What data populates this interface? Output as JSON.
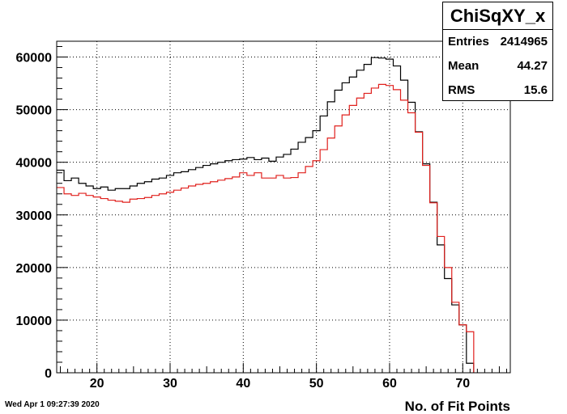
{
  "chart_data": {
    "type": "step",
    "title": "ChiSqXY_x",
    "xlabel": "No. of Fit Points",
    "ylabel": "",
    "xlim": [
      14.5,
      76.5
    ],
    "ylim": [
      0,
      63000
    ],
    "grid": true,
    "xticks": [
      20,
      30,
      40,
      50,
      60,
      70
    ],
    "yticks": [
      0,
      10000,
      20000,
      30000,
      40000,
      50000,
      60000
    ],
    "xtick_labels": [
      "20",
      "30",
      "40",
      "50",
      "60",
      "70"
    ],
    "ytick_labels": [
      "0",
      "10000",
      "20000",
      "30000",
      "40000",
      "50000",
      "60000"
    ],
    "bin_edges_start": 14.5,
    "bin_width": 1,
    "series": [
      {
        "color": "#000000",
        "values": [
          38500,
          36500,
          37000,
          36000,
          35500,
          35000,
          35300,
          34700,
          35000,
          35000,
          35500,
          36000,
          36300,
          36800,
          37000,
          37500,
          38000,
          38200,
          38600,
          39000,
          39400,
          39700,
          40000,
          40300,
          40500,
          40600,
          40900,
          40500,
          40800,
          40200,
          41000,
          41500,
          42500,
          43800,
          44700,
          46000,
          48800,
          51500,
          53700,
          55100,
          56200,
          57500,
          58600,
          59900,
          59800,
          59600,
          58300,
          55600,
          51400,
          45800,
          39700,
          32400,
          24300,
          17900,
          12900,
          9100,
          1800
        ]
      },
      {
        "color": "#e0201d",
        "values": [
          35200,
          34000,
          33700,
          34100,
          33700,
          33400,
          33100,
          32800,
          32600,
          32400,
          33000,
          33100,
          33300,
          33700,
          34000,
          34300,
          34700,
          35100,
          35500,
          35800,
          36000,
          36300,
          36600,
          36900,
          37200,
          38000,
          37500,
          38000,
          37000,
          37000,
          37500,
          37000,
          37100,
          38000,
          39200,
          40300,
          42400,
          44600,
          46900,
          49000,
          50800,
          52200,
          53100,
          54100,
          54800,
          54600,
          53800,
          51800,
          49400,
          45700,
          39400,
          32300,
          25900,
          20000,
          13400,
          9100,
          7800
        ]
      }
    ]
  },
  "stats": {
    "title": "ChiSqXY_x",
    "entries_label": "Entries",
    "entries_value": "2414965",
    "mean_label": "Mean",
    "mean_value": "44.27",
    "rms_label": "RMS",
    "rms_value": "15.6"
  },
  "footer": {
    "timestamp": "Wed Apr  1 09:27:39 2020"
  }
}
